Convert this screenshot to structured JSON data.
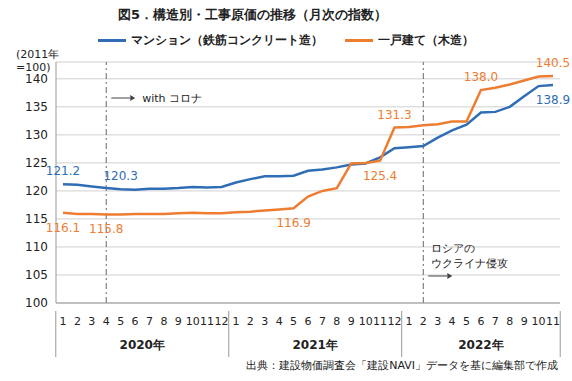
{
  "chart_data": {
    "type": "line",
    "title": "図5．構造別・工事原価の推移（月次の指数）",
    "y_label": "(2011年\n=100)",
    "source": "出典：建設物価調査会「建設NAVI」データを基に編集部で作成",
    "categories": [
      "1",
      "2",
      "3",
      "4",
      "5",
      "6",
      "7",
      "8",
      "9",
      "10",
      "11",
      "12",
      "1",
      "2",
      "3",
      "4",
      "5",
      "6",
      "7",
      "8",
      "9",
      "10",
      "11",
      "12",
      "1",
      "2",
      "3",
      "4",
      "5",
      "6",
      "7",
      "8",
      "9",
      "10",
      "11"
    ],
    "years": [
      "2020年",
      "2021年",
      "2022年"
    ],
    "series": [
      {
        "name": "マンション（鉄筋コンクリート造）",
        "color": "#2f6db5",
        "values": [
          121.2,
          121.1,
          120.8,
          120.5,
          120.3,
          120.2,
          120.4,
          120.4,
          120.5,
          120.7,
          120.6,
          120.7,
          121.5,
          122.1,
          122.6,
          122.6,
          122.7,
          123.6,
          123.8,
          124.2,
          124.7,
          124.9,
          126.0,
          127.6,
          127.8,
          128.0,
          129.5,
          130.8,
          131.8,
          134.0,
          134.1,
          135.0,
          136.9,
          138.7,
          138.9
        ],
        "value_labels": [
          "121.2",
          null,
          null,
          null,
          "120.3",
          null,
          null,
          null,
          null,
          null,
          null,
          null,
          null,
          null,
          null,
          null,
          null,
          null,
          null,
          null,
          null,
          null,
          null,
          null,
          null,
          null,
          null,
          null,
          null,
          null,
          null,
          null,
          null,
          null,
          "138.9"
        ]
      },
      {
        "name": "一戸建て（木造）",
        "color": "#ed7d31",
        "values": [
          116.1,
          115.9,
          115.9,
          115.8,
          115.8,
          115.9,
          115.9,
          115.9,
          116.0,
          116.1,
          116.0,
          116.0,
          116.2,
          116.3,
          116.5,
          116.7,
          116.9,
          119.0,
          120.0,
          120.5,
          124.9,
          125.0,
          125.4,
          131.3,
          131.4,
          131.7,
          131.9,
          132.4,
          132.4,
          138.0,
          138.4,
          139.0,
          139.7,
          140.4,
          140.5
        ],
        "value_labels": [
          "116.1",
          null,
          null,
          "115.8",
          null,
          null,
          null,
          null,
          null,
          null,
          null,
          null,
          null,
          null,
          null,
          null,
          "116.9",
          null,
          null,
          null,
          null,
          null,
          "125.4",
          "131.3",
          null,
          null,
          null,
          null,
          null,
          "138.0",
          null,
          null,
          null,
          null,
          "140.5"
        ]
      }
    ],
    "ylim": [
      100,
      143
    ],
    "yticks": [
      100,
      105,
      110,
      115,
      120,
      125,
      130,
      135,
      140
    ],
    "grid": true,
    "legend": "top",
    "data_labels": true,
    "annotations": [
      {
        "text": "with コロナ",
        "year": "2020年",
        "month": "4"
      },
      {
        "text": "ロシアの\nウクライナ侵攻",
        "year": "2022年",
        "month": "2"
      }
    ]
  }
}
